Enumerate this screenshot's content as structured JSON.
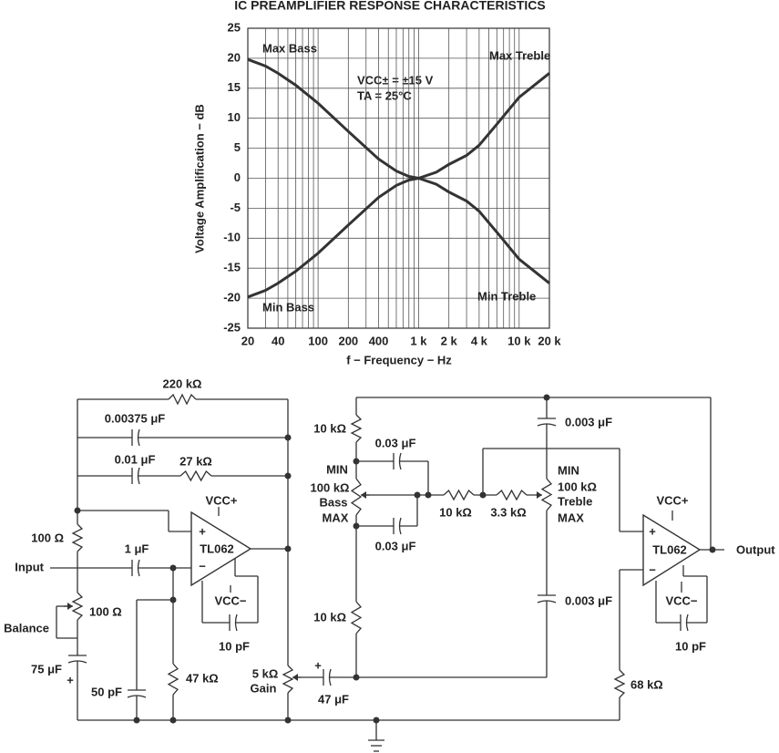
{
  "chart_data": {
    "type": "line",
    "title": "IC PREAMPLIFIER RESPONSE CHARACTERISTICS",
    "x_label": "f − Frequency − Hz",
    "y_label": "Voltage Amplification − dB",
    "log_x": true,
    "grid": true,
    "x": [
      20,
      30,
      40,
      60,
      100,
      200,
      400,
      600,
      800,
      1000,
      1500,
      2000,
      3000,
      4000,
      6000,
      10000,
      20000
    ],
    "series": [
      {
        "name": "Max Bass",
        "color": "#333333",
        "values": [
          19.8,
          18.7,
          17.5,
          15.5,
          12.5,
          7.8,
          3.2,
          1.2,
          0.3,
          0,
          null,
          null,
          null,
          null,
          null,
          null,
          null
        ]
      },
      {
        "name": "Min Bass",
        "color": "#333333",
        "values": [
          -19.8,
          -18.7,
          -17.5,
          -15.5,
          -12.5,
          -7.8,
          -3.2,
          -1.2,
          -0.3,
          0,
          null,
          null,
          null,
          null,
          null,
          null,
          null
        ]
      },
      {
        "name": "Max Treble",
        "color": "#333333",
        "values": [
          null,
          null,
          null,
          null,
          null,
          null,
          null,
          null,
          null,
          0,
          1,
          2.3,
          3.8,
          5.5,
          9,
          13.5,
          17.5
        ]
      },
      {
        "name": "Min Treble",
        "color": "#333333",
        "values": [
          null,
          null,
          null,
          null,
          null,
          null,
          null,
          null,
          null,
          0,
          -1,
          -2.3,
          -3.8,
          -5.5,
          -9,
          -13.5,
          -17.5
        ]
      }
    ],
    "annotations": [
      "VCC± = ±15 V",
      "TA = 25°C"
    ],
    "xlim": [
      20,
      20000
    ],
    "xticks": [
      20,
      40,
      100,
      200,
      400,
      {
        "value": 1000,
        "label": "1 k"
      },
      {
        "value": 2000,
        "label": "2 k"
      },
      {
        "value": 4000,
        "label": "4 k"
      },
      {
        "value": 10000,
        "label": "10 k"
      },
      {
        "value": 20000,
        "label": "20 k"
      }
    ],
    "x_grid": [
      30,
      50,
      60,
      70,
      80,
      90,
      300,
      500,
      600,
      700,
      800,
      900,
      3000,
      5000,
      6000,
      7000,
      8000,
      9000
    ],
    "ylim": [
      -25,
      25
    ],
    "yticks": [
      -25,
      -20,
      -15,
      -10,
      -5,
      0,
      5,
      10,
      15,
      20,
      25
    ]
  },
  "circuit": {
    "labels": [
      "220 kΩ",
      "0.00375 μF",
      "0.01 μF",
      "27 kΩ",
      "VCC+",
      "+",
      "−",
      "TL062",
      "100 Ω",
      "1 μF",
      "Input",
      "VCC−",
      "100 Ω",
      "Balance",
      "10 pF",
      "75 μF",
      "+",
      "50 pF",
      "47 kΩ",
      "5 kΩ",
      "Gain",
      "+",
      "47 μF",
      "10 kΩ",
      "MIN",
      "100 kΩ",
      "Bass",
      "MAX",
      "0.03 μF",
      "0.03 μF",
      "10 kΩ",
      "3.3 kΩ",
      "10 kΩ",
      "0.003 μF",
      "MIN",
      "100 kΩ",
      "Treble",
      "MAX",
      "0.003 μF",
      "VCC+",
      "+",
      "TL062",
      "−",
      "Output",
      "VCC−",
      "10 pF",
      "68 kΩ"
    ]
  }
}
